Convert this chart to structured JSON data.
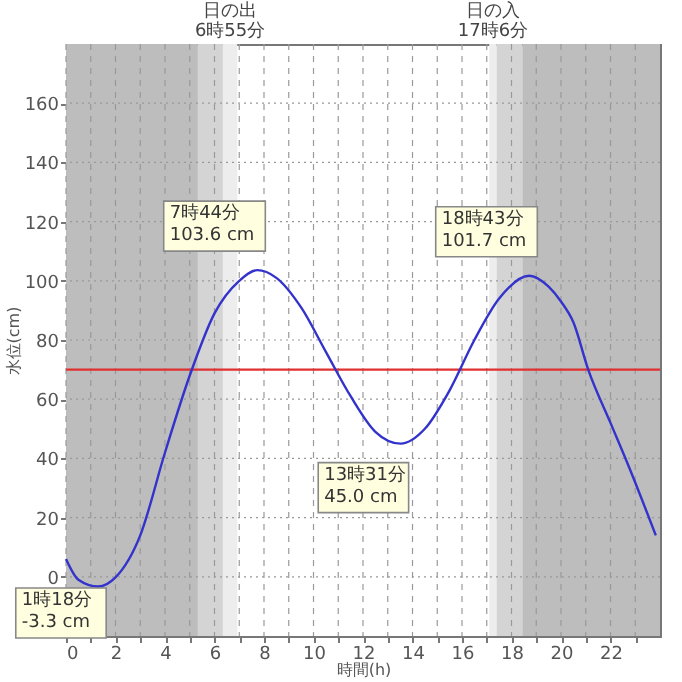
{
  "chart_data": {
    "type": "line",
    "xlabel": "時間(h)",
    "ylabel": "水位(cm)",
    "x": [
      0,
      0.5,
      1.3,
      2,
      3,
      4,
      5,
      6,
      7,
      7.73,
      8.5,
      9.5,
      10.5,
      11.5,
      12.5,
      13.52,
      14.5,
      15.5,
      16.5,
      17.5,
      18.72,
      19.5,
      20,
      20.5,
      21.1,
      22,
      22.8,
      23.83
    ],
    "series": [
      {
        "color": "#3333cc",
        "values": [
          6,
          -1,
          -3.3,
          -0.2,
          14,
          42,
          68,
          89,
          100,
          103.6,
          101,
          91,
          76,
          61,
          49,
          45,
          50,
          63,
          80,
          94,
          101.7,
          98,
          93,
          86,
          70,
          52,
          36,
          14
        ]
      }
    ],
    "xlim": [
      0,
      24
    ],
    "ylim": [
      -20,
      180
    ],
    "xticks": [
      0,
      {
        "value": 1,
        "label": null
      },
      2,
      {
        "value": 3,
        "label": null
      },
      4,
      {
        "value": 5,
        "label": null
      },
      6,
      {
        "value": 7,
        "label": null
      },
      8,
      {
        "value": 9,
        "label": null
      },
      10,
      {
        "value": 11,
        "label": null
      },
      12,
      {
        "value": 13,
        "label": null
      },
      14,
      {
        "value": 15,
        "label": null
      },
      16,
      {
        "value": 17,
        "label": null
      },
      18,
      {
        "value": 19,
        "label": null
      },
      20,
      {
        "value": 21,
        "label": null
      },
      22,
      {
        "value": 23,
        "label": null
      }
    ],
    "yticks": [
      0,
      20,
      40,
      60,
      80,
      100,
      120,
      140,
      160
    ],
    "grid": true,
    "marker": "none",
    "line_style": "solid",
    "ref_lines": [
      {
        "axis": "y",
        "value": 70,
        "color": "#e03030"
      }
    ],
    "bands": [
      {
        "axis": "x",
        "from": 0,
        "to": 5.33,
        "color": "#bdbdbd"
      },
      {
        "axis": "x",
        "from": 5.33,
        "to": 6.34,
        "color": "#d4d4d4"
      },
      {
        "axis": "x",
        "from": 6.34,
        "to": 6.92,
        "color": "#ededed",
        "label": "日の出\n6時55分"
      },
      {
        "axis": "x",
        "from": 17.1,
        "to": 17.4,
        "color": "#ededed",
        "label": "日の入\n17時6分"
      },
      {
        "axis": "x",
        "from": 17.4,
        "to": 18.44,
        "color": "#d4d4d4"
      },
      {
        "axis": "x",
        "from": 18.44,
        "to": 24,
        "color": "#bdbdbd"
      }
    ],
    "annotations": [
      {
        "text": "7時44分\n103.6 cm",
        "x": 7.73,
        "y": 103.6
      },
      {
        "text": "18時43分\n101.7 cm",
        "x": 18.72,
        "y": 101.7
      },
      {
        "text": "13時31分\n45.0 cm",
        "x": 13.52,
        "y": 45.0
      },
      {
        "text": "1時18分\n-3.3 cm",
        "x": 1.3,
        "y": -3.3
      }
    ]
  }
}
